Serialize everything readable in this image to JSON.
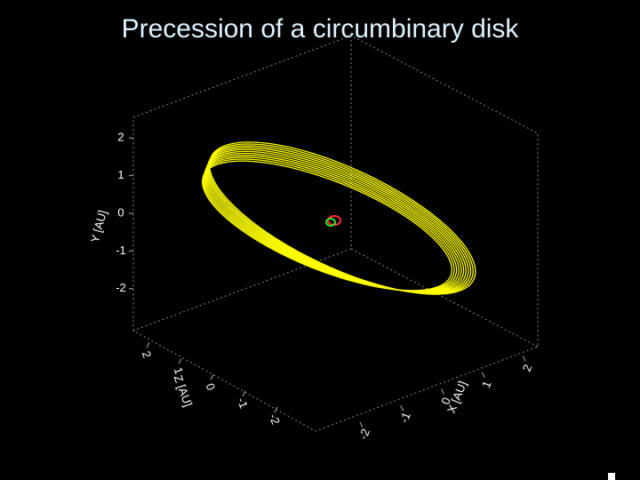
{
  "chart_data": {
    "type": "orbit3d",
    "title": "Precession of a circumbinary disk",
    "xlabel": "X [AU]",
    "ylabel": "Y [AU]",
    "zlabel": "Z [AU]",
    "xlim": [
      -2.5,
      2.5
    ],
    "xticks": [
      -2,
      -1,
      0,
      1,
      2
    ],
    "ylim": [
      -2.5,
      2.5
    ],
    "yticks": [
      -2,
      -1,
      0,
      1,
      2
    ],
    "zlim": [
      -2.5,
      2.5
    ],
    "zticks": [
      -2,
      -1,
      0,
      1,
      2
    ],
    "disk_color": "#ffff00",
    "grid": true
  }
}
